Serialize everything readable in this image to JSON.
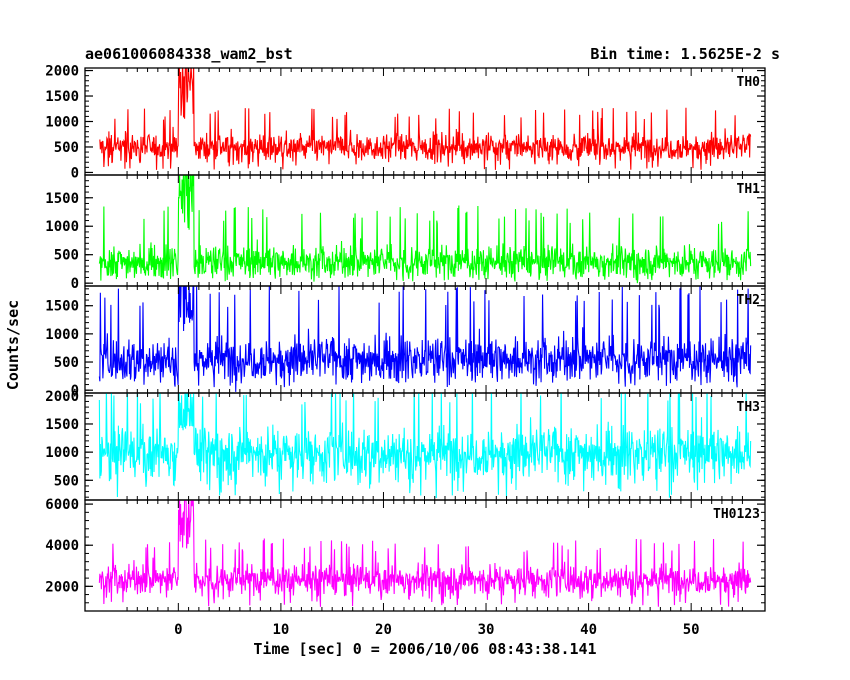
{
  "header": {
    "left_title": "ae061006084338_wam2_bst",
    "right_title": "Bin time: 1.5625E-2 s"
  },
  "chart_data": {
    "type": "line",
    "xlabel": "Time [sec] 0 = 2006/10/06 08:43:38.141",
    "ylabel": "Counts/sec",
    "xlim": [
      -9.1,
      57.2
    ],
    "x_ticks": [
      0,
      10,
      20,
      30,
      40,
      50
    ],
    "grid": false,
    "legend": "none",
    "data_x_range": [
      -7.7,
      55.8
    ],
    "burst_x_range": [
      0.0,
      1.5
    ],
    "panels": [
      {
        "name": "TH0",
        "color": "#ff0000",
        "ylim": [
          -50,
          2050
        ],
        "y_ticks": [
          0,
          500,
          1000,
          1500,
          2000
        ],
        "baseline_mean": 500,
        "baseline_spread": [
          50,
          1150
        ],
        "burst_peak": 2050
      },
      {
        "name": "TH1",
        "color": "#00ff00",
        "ylim": [
          -50,
          1900
        ],
        "y_ticks": [
          0,
          500,
          1000,
          1500
        ],
        "baseline_mean": 380,
        "baseline_spread": [
          30,
          1200
        ],
        "burst_peak": 1900
      },
      {
        "name": "TH2",
        "color": "#0000ff",
        "ylim": [
          -50,
          1850
        ],
        "y_ticks": [
          0,
          500,
          1000,
          1500
        ],
        "baseline_mean": 560,
        "baseline_spread": [
          50,
          1650
        ],
        "burst_peak": 1850
      },
      {
        "name": "TH3",
        "color": "#00ffff",
        "ylim": [
          150,
          2050
        ],
        "y_ticks": [
          500,
          1000,
          1500,
          2000
        ],
        "baseline_mean": 1000,
        "baseline_spread": [
          180,
          2050
        ],
        "burst_peak": 2050
      },
      {
        "name": "TH0123",
        "color": "#ff00ff",
        "ylim": [
          800,
          6200
        ],
        "y_ticks": [
          2000,
          4000,
          6000
        ],
        "baseline_mean": 2350,
        "baseline_spread": [
          1000,
          4000
        ],
        "burst_peak": 6200
      }
    ]
  }
}
